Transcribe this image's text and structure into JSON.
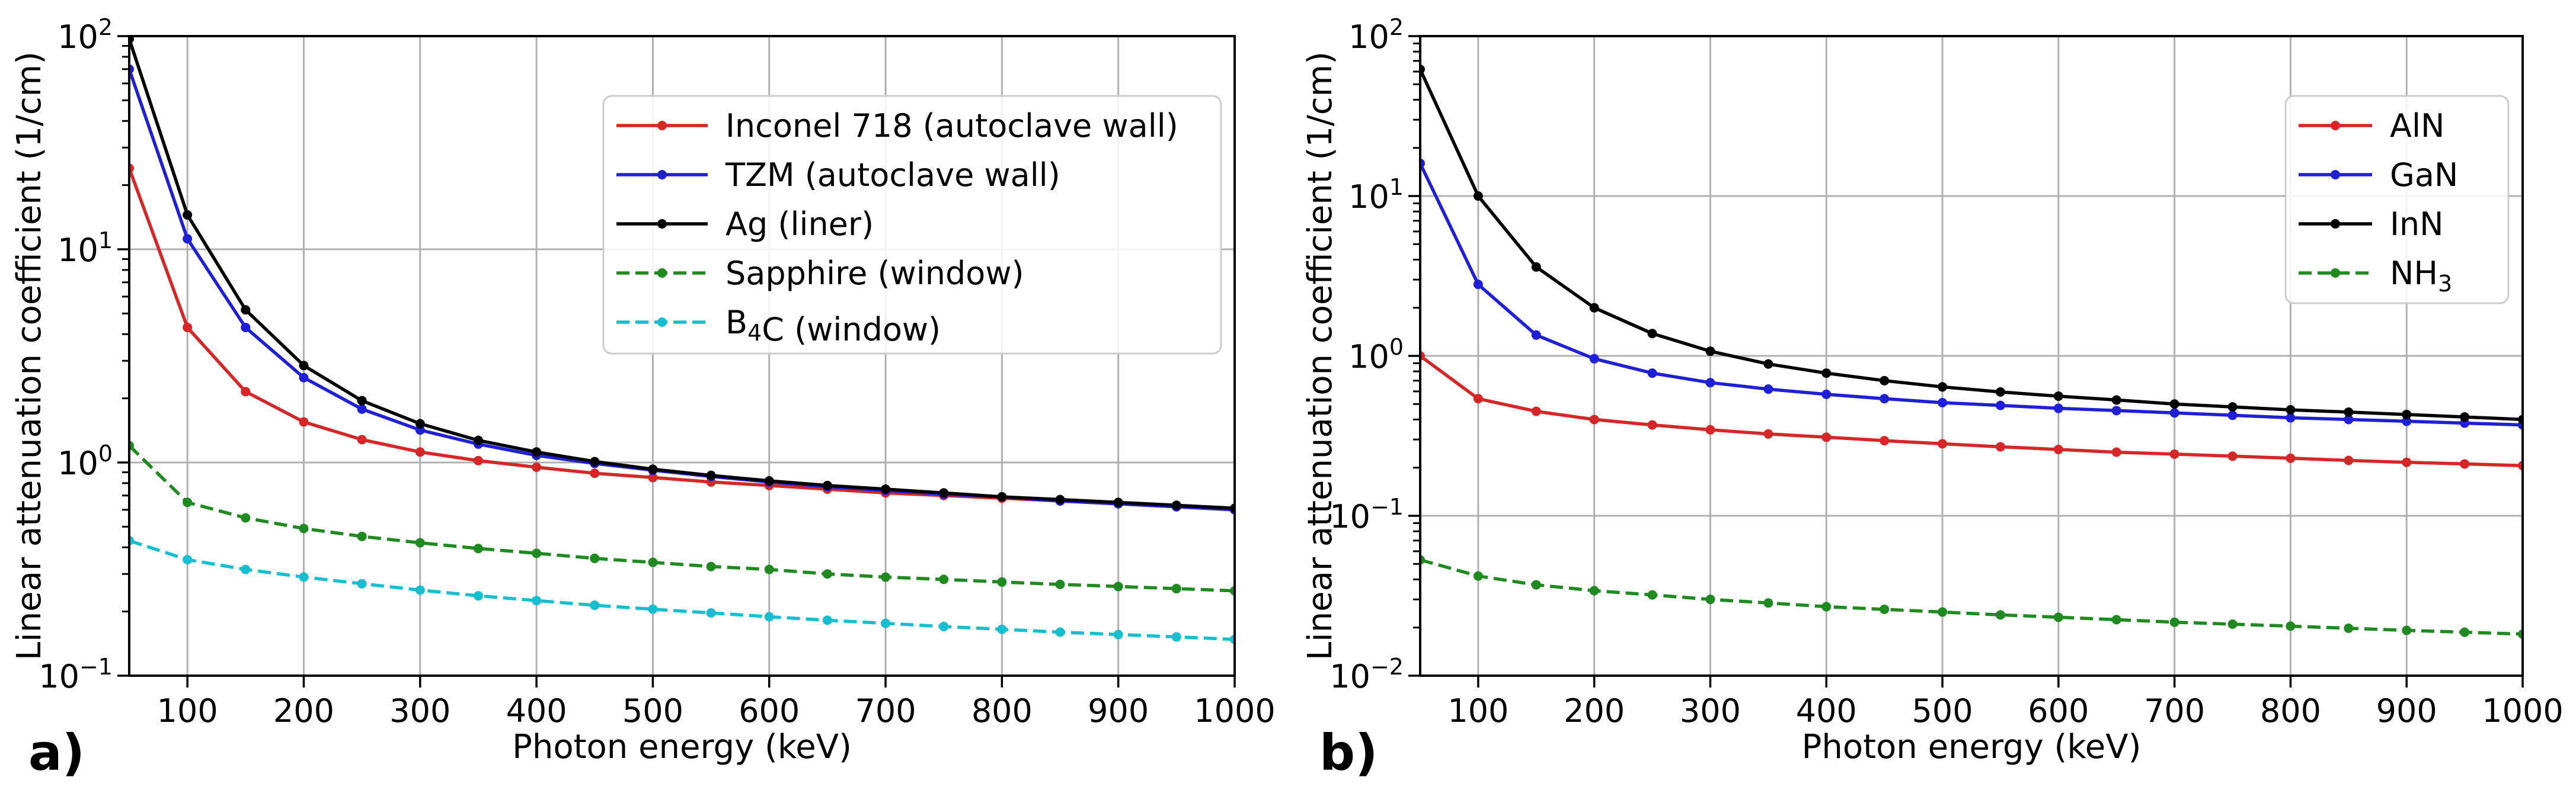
{
  "figure": {
    "panel_labels": [
      "a)",
      "b)"
    ]
  },
  "chart_data": [
    {
      "type": "line",
      "panel": "a)",
      "title": "",
      "xlabel": "Photon energy (keV)",
      "ylabel": "Linear attenuation coefficient (1/cm)",
      "xlim": [
        50,
        1000
      ],
      "ylim": [
        0.1,
        100
      ],
      "yscale": "log",
      "grid": true,
      "legend_position": "top-right",
      "x_ticks": [
        100,
        200,
        300,
        400,
        500,
        600,
        700,
        800,
        900,
        1000
      ],
      "x_tick_labels": [
        "100",
        "200",
        "300",
        "400",
        "500",
        "600",
        "700",
        "800",
        "900",
        "1000"
      ],
      "y_ticks": [
        0.1,
        1,
        10,
        100
      ],
      "y_tick_labels": [
        {
          "base": "10",
          "exp": "−1"
        },
        {
          "base": "10",
          "exp": "0"
        },
        {
          "base": "10",
          "exp": "1"
        },
        {
          "base": "10",
          "exp": "2"
        }
      ],
      "x": [
        50,
        100,
        150,
        200,
        250,
        300,
        350,
        400,
        450,
        500,
        550,
        600,
        650,
        700,
        750,
        800,
        850,
        900,
        950,
        1000
      ],
      "series": [
        {
          "name": "Inconel 718 (autoclave wall)",
          "label_parts": [
            {
              "t": "Inconel 718 (autoclave wall)"
            }
          ],
          "color": "#d62728",
          "dash": "solid",
          "values": [
            24,
            4.3,
            2.15,
            1.55,
            1.28,
            1.12,
            1.02,
            0.95,
            0.89,
            0.85,
            0.81,
            0.78,
            0.75,
            0.72,
            0.7,
            0.68,
            0.66,
            0.64,
            0.62,
            0.6
          ]
        },
        {
          "name": "TZM (autoclave wall)",
          "label_parts": [
            {
              "t": "TZM (autoclave wall)"
            }
          ],
          "color": "#1f1fd6",
          "dash": "solid",
          "values": [
            70,
            11.2,
            4.3,
            2.5,
            1.78,
            1.42,
            1.22,
            1.08,
            0.99,
            0.92,
            0.86,
            0.81,
            0.77,
            0.74,
            0.71,
            0.69,
            0.66,
            0.64,
            0.62,
            0.6
          ]
        },
        {
          "name": "Ag (liner)",
          "label_parts": [
            {
              "t": "Ag (liner)"
            }
          ],
          "color": "#000000",
          "dash": "solid",
          "values": [
            97,
            14.5,
            5.2,
            2.85,
            1.95,
            1.52,
            1.27,
            1.12,
            1.01,
            0.93,
            0.87,
            0.82,
            0.78,
            0.75,
            0.72,
            0.69,
            0.67,
            0.65,
            0.63,
            0.61
          ]
        },
        {
          "name": "Sapphire (window)",
          "label_parts": [
            {
              "t": "Sapphire (window)"
            }
          ],
          "color": "#1f8a1f",
          "dash": "dashed",
          "values": [
            1.2,
            0.65,
            0.55,
            0.49,
            0.45,
            0.42,
            0.395,
            0.375,
            0.355,
            0.34,
            0.325,
            0.315,
            0.3,
            0.29,
            0.283,
            0.275,
            0.268,
            0.262,
            0.256,
            0.25
          ]
        },
        {
          "name": "B4C (window)",
          "label_parts": [
            {
              "t": "B"
            },
            {
              "t": "4",
              "sub": true
            },
            {
              "t": "C (window)"
            }
          ],
          "color": "#17becf",
          "dash": "dashed",
          "values": [
            0.43,
            0.35,
            0.315,
            0.29,
            0.27,
            0.252,
            0.237,
            0.225,
            0.214,
            0.205,
            0.197,
            0.189,
            0.182,
            0.176,
            0.17,
            0.165,
            0.16,
            0.156,
            0.152,
            0.148
          ]
        }
      ]
    },
    {
      "type": "line",
      "panel": "b)",
      "title": "",
      "xlabel": "Photon energy (keV)",
      "ylabel": "Linear attenuation coefficient (1/cm)",
      "xlim": [
        50,
        1000
      ],
      "ylim": [
        0.01,
        100
      ],
      "yscale": "log",
      "grid": true,
      "legend_position": "top-right",
      "x_ticks": [
        100,
        200,
        300,
        400,
        500,
        600,
        700,
        800,
        900,
        1000
      ],
      "x_tick_labels": [
        "100",
        "200",
        "300",
        "400",
        "500",
        "600",
        "700",
        "800",
        "900",
        "1000"
      ],
      "y_ticks": [
        0.01,
        0.1,
        1,
        10,
        100
      ],
      "y_tick_labels": [
        {
          "base": "10",
          "exp": "−2"
        },
        {
          "base": "10",
          "exp": "−1"
        },
        {
          "base": "10",
          "exp": "0"
        },
        {
          "base": "10",
          "exp": "1"
        },
        {
          "base": "10",
          "exp": "2"
        }
      ],
      "x": [
        50,
        100,
        150,
        200,
        250,
        300,
        350,
        400,
        450,
        500,
        550,
        600,
        650,
        700,
        750,
        800,
        850,
        900,
        950,
        1000
      ],
      "series": [
        {
          "name": "AlN",
          "label_parts": [
            {
              "t": "AlN"
            }
          ],
          "color": "#d62728",
          "dash": "solid",
          "values": [
            1.0,
            0.54,
            0.45,
            0.4,
            0.37,
            0.345,
            0.325,
            0.31,
            0.295,
            0.282,
            0.27,
            0.26,
            0.25,
            0.243,
            0.236,
            0.229,
            0.222,
            0.216,
            0.211,
            0.206
          ]
        },
        {
          "name": "GaN",
          "label_parts": [
            {
              "t": "GaN"
            }
          ],
          "color": "#1f1fd6",
          "dash": "solid",
          "values": [
            16,
            2.8,
            1.35,
            0.96,
            0.78,
            0.68,
            0.62,
            0.575,
            0.54,
            0.51,
            0.49,
            0.47,
            0.455,
            0.44,
            0.425,
            0.41,
            0.4,
            0.39,
            0.38,
            0.37
          ]
        },
        {
          "name": "InN",
          "label_parts": [
            {
              "t": "InN"
            }
          ],
          "color": "#000000",
          "dash": "solid",
          "values": [
            62,
            10,
            3.6,
            2.0,
            1.38,
            1.07,
            0.89,
            0.78,
            0.7,
            0.64,
            0.595,
            0.56,
            0.53,
            0.5,
            0.48,
            0.46,
            0.445,
            0.43,
            0.415,
            0.4
          ]
        },
        {
          "name": "NH3",
          "label_parts": [
            {
              "t": "NH"
            },
            {
              "t": "3",
              "sub": true
            }
          ],
          "color": "#1f8a1f",
          "dash": "dashed",
          "values": [
            0.053,
            0.042,
            0.037,
            0.034,
            0.032,
            0.03,
            0.0285,
            0.027,
            0.026,
            0.025,
            0.024,
            0.0232,
            0.0224,
            0.0216,
            0.021,
            0.0204,
            0.0198,
            0.0192,
            0.0187,
            0.0182
          ]
        }
      ]
    }
  ]
}
